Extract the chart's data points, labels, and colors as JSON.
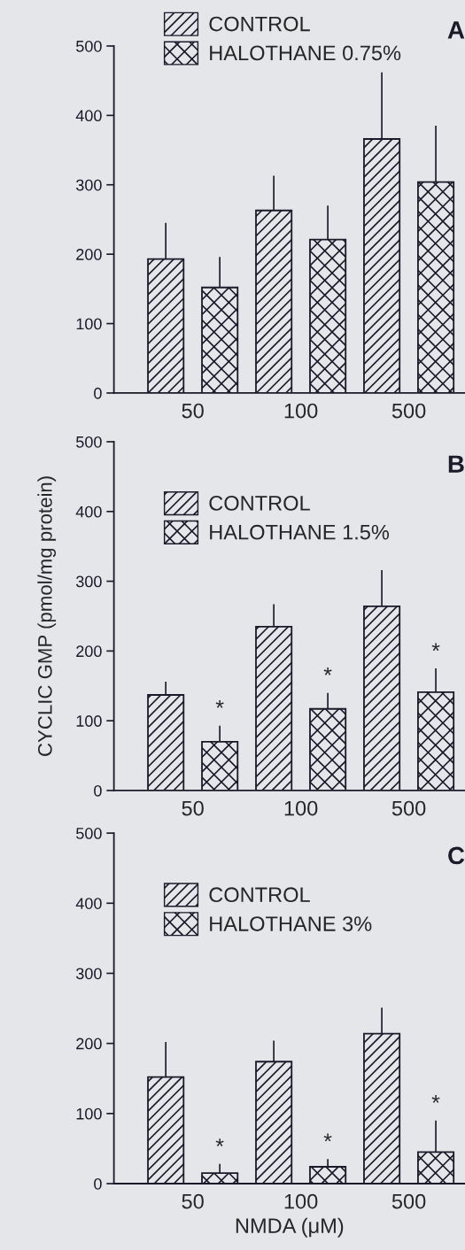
{
  "chart_data": [
    {
      "type": "bar",
      "title": "A",
      "categories": [
        "50",
        "100",
        "500"
      ],
      "ylim": [
        0,
        500
      ],
      "yticks": [
        0,
        100,
        200,
        300,
        400,
        500
      ],
      "legend": "top left",
      "grid": false,
      "series": [
        {
          "name": "CONTROL",
          "color": "#1a1a2a",
          "values": [
            193,
            263,
            366
          ],
          "errors": [
            [
              193,
              245
            ],
            [
              263,
              313
            ],
            [
              366,
              462
            ]
          ]
        },
        {
          "name": "HALOTHANE 0.75%",
          "color": "#1a1a2a",
          "values": [
            152,
            221,
            304
          ],
          "errors": [
            [
              152,
              196
            ],
            [
              221,
              270
            ],
            [
              304,
              385
            ]
          ]
        }
      ]
    },
    {
      "type": "bar",
      "title": "B",
      "ylabel": "CYCLIC GMP (pmol/mg protein)",
      "categories": [
        "50",
        "100",
        "500"
      ],
      "ylim": [
        0,
        500
      ],
      "yticks": [
        0,
        100,
        200,
        300,
        400,
        500
      ],
      "legend": "top left",
      "grid": false,
      "series": [
        {
          "name": "CONTROL",
          "color": "#1a1a2a",
          "values": [
            137,
            235,
            264
          ],
          "errors": [
            [
              137,
              156
            ],
            [
              235,
              267
            ],
            [
              264,
              316
            ]
          ]
        },
        {
          "name": "HALOTHANE 1.5%",
          "color": "#1a1a2a",
          "values": [
            70,
            117,
            141
          ],
          "errors": [
            [
              70,
              93
            ],
            [
              117,
              140
            ],
            [
              141,
              175
            ]
          ]
        }
      ],
      "annotations": [
        "*",
        "*",
        "*"
      ]
    },
    {
      "type": "bar",
      "title": "C",
      "xlabel": "NMDA (μM)",
      "categories": [
        "50",
        "100",
        "500"
      ],
      "ylim": [
        0,
        500
      ],
      "yticks": [
        0,
        100,
        200,
        300,
        400,
        500
      ],
      "legend": "top left",
      "grid": false,
      "series": [
        {
          "name": "CONTROL",
          "color": "#1a1a2a",
          "values": [
            152,
            174,
            214
          ],
          "errors": [
            [
              152,
              202
            ],
            [
              174,
              204
            ],
            [
              214,
              251
            ]
          ]
        },
        {
          "name": "HALOTHANE 3%",
          "color": "#1a1a2a",
          "values": [
            15,
            24,
            45
          ],
          "errors": [
            [
              15,
              28
            ],
            [
              24,
              35
            ],
            [
              45,
              90
            ]
          ]
        }
      ],
      "annotations": [
        "*",
        "*",
        "*"
      ]
    }
  ]
}
